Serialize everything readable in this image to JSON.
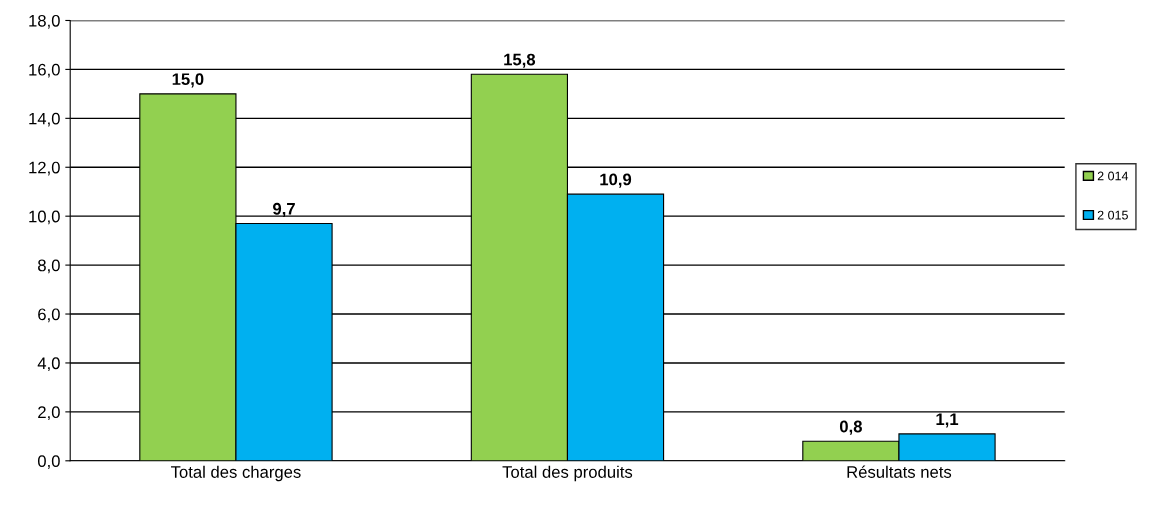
{
  "chart_data": {
    "type": "bar",
    "categories": [
      "Total des charges",
      "Total des produits",
      "Résultats nets"
    ],
    "series": [
      {
        "name": "2 014",
        "color": "#92d050",
        "values": [
          15.0,
          15.8,
          0.8
        ],
        "value_labels": [
          "15,0",
          "15,8",
          "0,8"
        ]
      },
      {
        "name": "2 015",
        "color": "#00b0f0",
        "values": [
          9.7,
          10.9,
          1.1
        ],
        "value_labels": [
          "9,7",
          "10,9",
          "1,1"
        ]
      }
    ],
    "ylim": [
      0,
      18
    ],
    "yticks": [
      {
        "value": 0,
        "label": "0,0"
      },
      {
        "value": 2,
        "label": "2,0"
      },
      {
        "value": 4,
        "label": "4,0"
      },
      {
        "value": 6,
        "label": "6,0"
      },
      {
        "value": 8,
        "label": "8,0"
      },
      {
        "value": 10,
        "label": "10,0"
      },
      {
        "value": 12,
        "label": "12,0"
      },
      {
        "value": 14,
        "label": "14,0"
      },
      {
        "value": 16,
        "label": "16,0"
      },
      {
        "value": 18,
        "label": "18,0"
      }
    ],
    "grid": "y",
    "legend": "right"
  }
}
